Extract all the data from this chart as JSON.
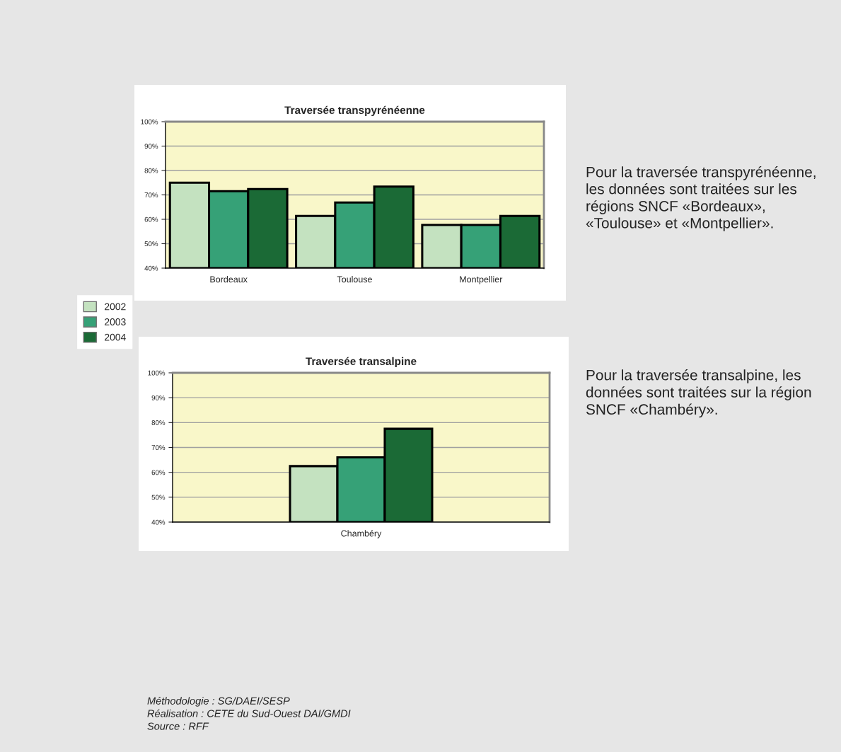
{
  "chart_data": [
    {
      "type": "bar",
      "title": "Traversée transpyrénéenne",
      "categories": [
        "Bordeaux",
        "Toulouse",
        "Montpellier"
      ],
      "series": [
        {
          "name": "2002",
          "color": "#c4e2c0",
          "values": [
            75,
            61.4,
            57.7
          ]
        },
        {
          "name": "2003",
          "color": "#36a177",
          "values": [
            71.5,
            66.9,
            57.7
          ]
        },
        {
          "name": "2004",
          "color": "#1b6a36",
          "values": [
            72.4,
            73.4,
            61.4
          ]
        }
      ],
      "ylim": [
        40,
        100
      ],
      "yticks": [
        {
          "value": 40,
          "label": "40%"
        },
        {
          "value": 50,
          "label": "50%"
        },
        {
          "value": 60,
          "label": "60%"
        },
        {
          "value": 70,
          "label": "70%"
        },
        {
          "value": 80,
          "label": "80%"
        },
        {
          "value": 90,
          "label": "90%"
        },
        {
          "value": 100,
          "label": "100%"
        }
      ],
      "grid": "y",
      "legend": "bottom left",
      "annotations": [
        "Pour la traversée transpyrénéenne, les données sont traitées sur les régions SNCF «Bordeaux», «Toulouse» et «Montpellier»."
      ]
    },
    {
      "type": "bar",
      "title": "Traversée transalpine",
      "categories": [
        "Chambéry"
      ],
      "series": [
        {
          "color": "#c4e2c0",
          "values": [
            62.5
          ]
        },
        {
          "color": "#36a177",
          "values": [
            66
          ]
        },
        {
          "color": "#1b6a36",
          "values": [
            77.5
          ]
        }
      ],
      "ylim": [
        40,
        100
      ],
      "yticks": [
        {
          "value": 40,
          "label": "40%"
        },
        {
          "value": 50,
          "label": "50%"
        },
        {
          "value": 60,
          "label": "60%"
        },
        {
          "value": 70,
          "label": "70%"
        },
        {
          "value": 80,
          "label": "80%"
        },
        {
          "value": 90,
          "label": "90%"
        },
        {
          "value": 100,
          "label": "100%"
        }
      ],
      "grid": "y",
      "annotations": [
        "Pour la traversée transalpine, les données sont traitées sur la région SNCF «Chambéry».",
        "Méthodologie : SG/DAEI/SESP",
        "Réalisation : CETE du Sud-Ouest DAI/GMDI",
        "Source : RFF"
      ]
    }
  ]
}
